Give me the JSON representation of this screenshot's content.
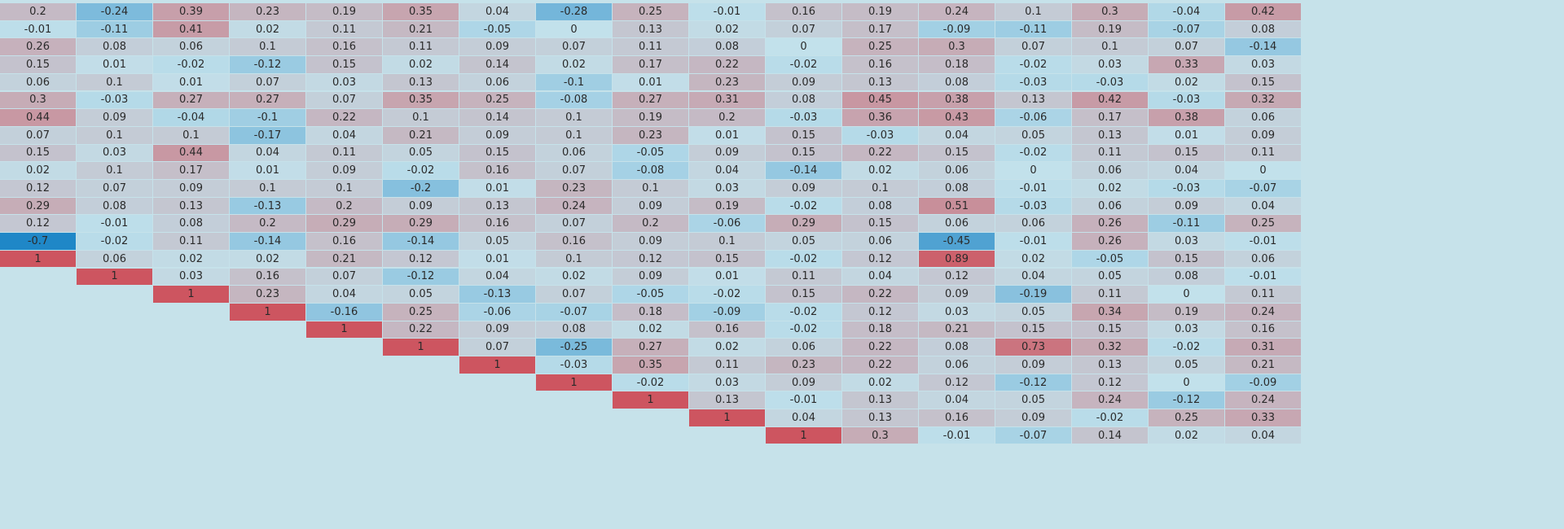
{
  "chart_data": {
    "type": "heatmap",
    "title": "",
    "xlabel": "",
    "ylabel": "",
    "color_scale": {
      "negative": "#1f87c7",
      "neutral": "#c2e1eb",
      "positive": "#cd5560",
      "domain": [
        -0.7,
        1
      ]
    },
    "empty_color": "#c6e2ea",
    "rows": [
      [
        "0.2",
        "-0.24",
        "0.39",
        "0.23",
        "0.19",
        "0.35",
        "0.04",
        "-0.28",
        "0.25",
        "-0.01",
        "0.16",
        "0.19",
        "0.24",
        "0.1",
        "0.3",
        "-0.04",
        "0.42"
      ],
      [
        "-0.01",
        "-0.11",
        "0.41",
        "0.02",
        "0.11",
        "0.21",
        "-0.05",
        "0",
        "0.13",
        "0.02",
        "0.07",
        "0.17",
        "-0.09",
        "-0.11",
        "0.19",
        "-0.07",
        "0.08"
      ],
      [
        "0.26",
        "0.08",
        "0.06",
        "0.1",
        "0.16",
        "0.11",
        "0.09",
        "0.07",
        "0.11",
        "0.08",
        "0",
        "0.25",
        "0.3",
        "0.07",
        "0.1",
        "0.07",
        "-0.14"
      ],
      [
        "0.15",
        "0.01",
        "-0.02",
        "-0.12",
        "0.15",
        "0.02",
        "0.14",
        "0.02",
        "0.17",
        "0.22",
        "-0.02",
        "0.16",
        "0.18",
        "-0.02",
        "0.03",
        "0.33",
        "0.03"
      ],
      [
        "0.06",
        "0.1",
        "0.01",
        "0.07",
        "0.03",
        "0.13",
        "0.06",
        "-0.1",
        "0.01",
        "0.23",
        "0.09",
        "0.13",
        "0.08",
        "-0.03",
        "-0.03",
        "0.02",
        "0.15"
      ],
      [
        "0.3",
        "-0.03",
        "0.27",
        "0.27",
        "0.07",
        "0.35",
        "0.25",
        "-0.08",
        "0.27",
        "0.31",
        "0.08",
        "0.45",
        "0.38",
        "0.13",
        "0.42",
        "-0.03",
        "0.32"
      ],
      [
        "0.44",
        "0.09",
        "-0.04",
        "-0.1",
        "0.22",
        "0.1",
        "0.14",
        "0.1",
        "0.19",
        "0.2",
        "-0.03",
        "0.36",
        "0.43",
        "-0.06",
        "0.17",
        "0.38",
        "0.06"
      ],
      [
        "0.07",
        "0.1",
        "0.1",
        "-0.17",
        "0.04",
        "0.21",
        "0.09",
        "0.1",
        "0.23",
        "0.01",
        "0.15",
        "-0.03",
        "0.04",
        "0.05",
        "0.13",
        "0.01",
        "0.09"
      ],
      [
        "0.15",
        "0.03",
        "0.44",
        "0.04",
        "0.11",
        "0.05",
        "0.15",
        "0.06",
        "-0.05",
        "0.09",
        "0.15",
        "0.22",
        "0.15",
        "-0.02",
        "0.11",
        "0.15",
        "0.11"
      ],
      [
        "0.02",
        "0.1",
        "0.17",
        "0.01",
        "0.09",
        "-0.02",
        "0.16",
        "0.07",
        "-0.08",
        "0.04",
        "-0.14",
        "0.02",
        "0.06",
        "0",
        "0.06",
        "0.04",
        "0"
      ],
      [
        "0.12",
        "0.07",
        "0.09",
        "0.1",
        "0.1",
        "-0.2",
        "0.01",
        "0.23",
        "0.1",
        "0.03",
        "0.09",
        "0.1",
        "0.08",
        "-0.01",
        "0.02",
        "-0.03",
        "-0.07"
      ],
      [
        "0.29",
        "0.08",
        "0.13",
        "-0.13",
        "0.2",
        "0.09",
        "0.13",
        "0.24",
        "0.09",
        "0.19",
        "-0.02",
        "0.08",
        "0.51",
        "-0.03",
        "0.06",
        "0.09",
        "0.04"
      ],
      [
        "0.12",
        "-0.01",
        "0.08",
        "0.2",
        "0.29",
        "0.29",
        "0.16",
        "0.07",
        "0.2",
        "-0.06",
        "0.29",
        "0.15",
        "0.06",
        "0.06",
        "0.26",
        "-0.11",
        "0.25"
      ],
      [
        "-0.7",
        "-0.02",
        "0.11",
        "-0.14",
        "0.16",
        "-0.14",
        "0.05",
        "0.16",
        "0.09",
        "0.1",
        "0.05",
        "0.06",
        "-0.45",
        "-0.01",
        "0.26",
        "0.03",
        "-0.01"
      ],
      [
        "1",
        "0.06",
        "0.02",
        "0.02",
        "0.21",
        "0.12",
        "0.01",
        "0.1",
        "0.12",
        "0.15",
        "-0.02",
        "0.12",
        "0.89",
        "0.02",
        "-0.05",
        "0.15",
        "0.06"
      ],
      [
        "",
        "1",
        "0.03",
        "0.16",
        "0.07",
        "-0.12",
        "0.04",
        "0.02",
        "0.09",
        "0.01",
        "0.11",
        "0.04",
        "0.12",
        "0.04",
        "0.05",
        "0.08",
        "-0.01"
      ],
      [
        "",
        "",
        "1",
        "0.23",
        "0.04",
        "0.05",
        "-0.13",
        "0.07",
        "-0.05",
        "-0.02",
        "0.15",
        "0.22",
        "0.09",
        "-0.19",
        "0.11",
        "0",
        "0.11"
      ],
      [
        "",
        "",
        "",
        "1",
        "-0.16",
        "0.25",
        "-0.06",
        "-0.07",
        "0.18",
        "-0.09",
        "-0.02",
        "0.12",
        "0.03",
        "0.05",
        "0.34",
        "0.19",
        "0.24"
      ],
      [
        "",
        "",
        "",
        "",
        "1",
        "0.22",
        "0.09",
        "0.08",
        "0.02",
        "0.16",
        "-0.02",
        "0.18",
        "0.21",
        "0.15",
        "0.15",
        "0.03",
        "0.16"
      ],
      [
        "",
        "",
        "",
        "",
        "",
        "1",
        "0.07",
        "-0.25",
        "0.27",
        "0.02",
        "0.06",
        "0.22",
        "0.08",
        "0.73",
        "0.32",
        "-0.02",
        "0.31"
      ],
      [
        "",
        "",
        "",
        "",
        "",
        "",
        "1",
        "-0.03",
        "0.35",
        "0.11",
        "0.23",
        "0.22",
        "0.06",
        "0.09",
        "0.13",
        "0.05",
        "0.21"
      ],
      [
        "",
        "",
        "",
        "",
        "",
        "",
        "",
        "1",
        "-0.02",
        "0.03",
        "0.09",
        "0.02",
        "0.12",
        "-0.12",
        "0.12",
        "0",
        "-0.09"
      ],
      [
        "",
        "",
        "",
        "",
        "",
        "",
        "",
        "",
        "1",
        "0.13",
        "-0.01",
        "0.13",
        "0.04",
        "0.05",
        "0.24",
        "-0.12",
        "0.24"
      ],
      [
        "",
        "",
        "",
        "",
        "",
        "",
        "",
        "",
        "",
        "1",
        "0.04",
        "0.13",
        "0.16",
        "0.09",
        "-0.02",
        "0.25",
        "0.33"
      ],
      [
        "",
        "",
        "",
        "",
        "",
        "",
        "",
        "",
        "",
        "",
        "1",
        "0.3",
        "-0.01",
        "-0.07",
        "0.14",
        "0.02",
        "0.04"
      ]
    ]
  }
}
